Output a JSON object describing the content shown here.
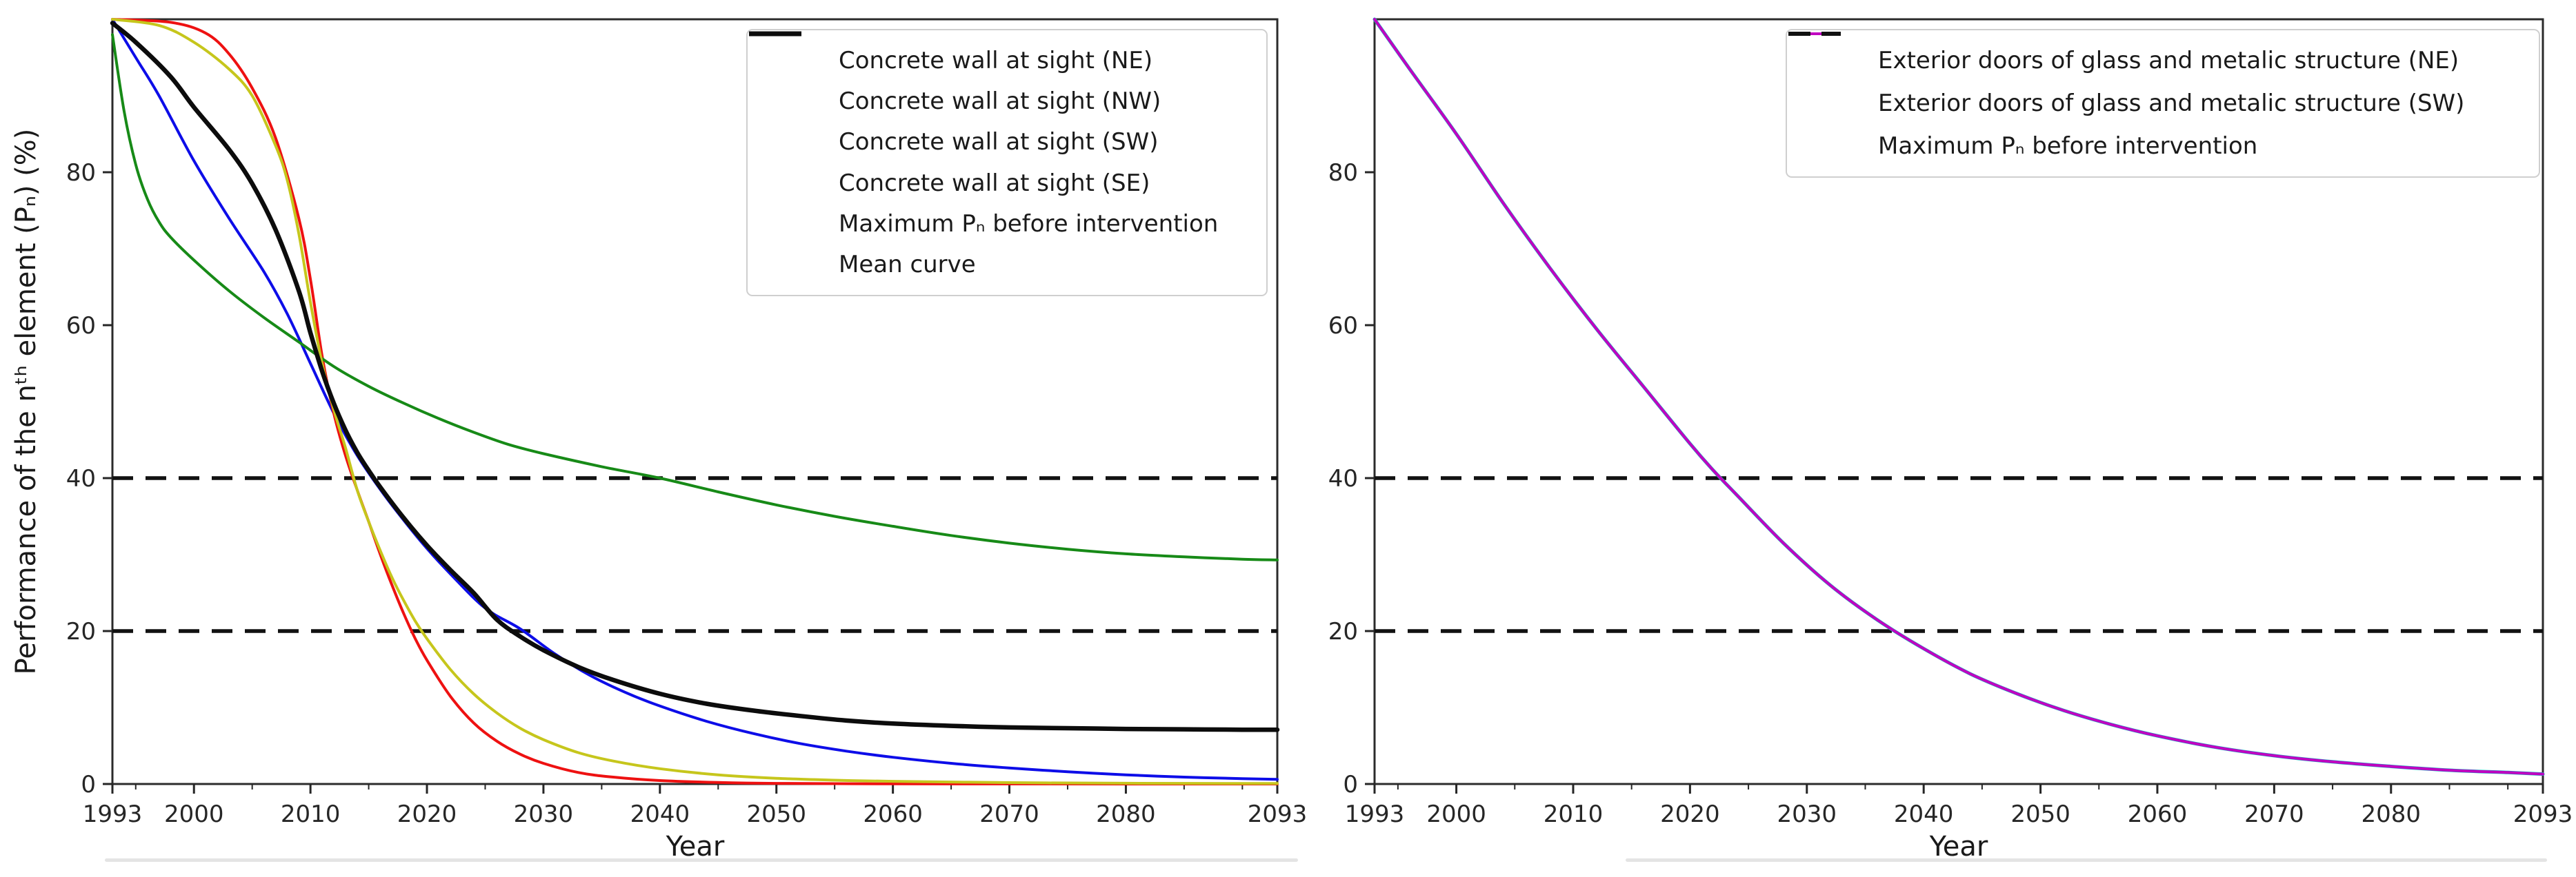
{
  "figure": {
    "background": "#ffffff",
    "spine_color": "#2b2b2b",
    "tick_color": "#262626",
    "text_color": "#1a1a1a"
  },
  "chart_data": [
    {
      "type": "line",
      "title": "",
      "xlabel": "Year",
      "ylabel": "Performance of the nᵗʰ element (Pₙ) (%)",
      "xlim": [
        1993,
        2093
      ],
      "ylim": [
        0,
        100
      ],
      "xticks_major": [
        1993,
        2000,
        2010,
        2020,
        2030,
        2040,
        2050,
        2060,
        2070,
        2080,
        2093
      ],
      "xticks_minor": [
        1995,
        2005,
        2015,
        2025,
        2035,
        2045,
        2055,
        2065,
        2075,
        2085,
        2090
      ],
      "yticks": [
        0,
        20,
        40,
        60,
        80
      ],
      "grid": false,
      "legend_position": "upper right",
      "hlines": [
        {
          "y": 40,
          "color": "#111111",
          "style": "dashed",
          "width": 5.5
        },
        {
          "y": 20,
          "color": "#111111",
          "style": "dashed",
          "width": 5.5
        }
      ],
      "series": [
        {
          "name": "Concrete wall at sight (NE)",
          "color": "#0d0de8",
          "width": 4,
          "points": [
            [
              1993,
              100
            ],
            [
              1995,
              95
            ],
            [
              1997,
              90
            ],
            [
              2000,
              81.5
            ],
            [
              2003,
              74
            ],
            [
              2006,
              67
            ],
            [
              2008,
              61.5
            ],
            [
              2010,
              55
            ],
            [
              2012,
              48.5
            ],
            [
              2014,
              43
            ],
            [
              2016,
              38.5
            ],
            [
              2018,
              34.5
            ],
            [
              2020,
              30.8
            ],
            [
              2022,
              27.5
            ],
            [
              2025,
              23
            ],
            [
              2028,
              20.3
            ],
            [
              2031,
              17
            ],
            [
              2034,
              14.2
            ],
            [
              2037,
              12
            ],
            [
              2040,
              10.2
            ],
            [
              2044,
              8.2
            ],
            [
              2048,
              6.6
            ],
            [
              2052,
              5.3
            ],
            [
              2056,
              4.3
            ],
            [
              2060,
              3.5
            ],
            [
              2065,
              2.7
            ],
            [
              2070,
              2.1
            ],
            [
              2075,
              1.6
            ],
            [
              2080,
              1.2
            ],
            [
              2085,
              0.9
            ],
            [
              2090,
              0.7
            ],
            [
              2093,
              0.6
            ]
          ]
        },
        {
          "name": "Concrete wall at sight (NW)",
          "color": "#ee1111",
          "width": 4,
          "points": [
            [
              1993,
              100
            ],
            [
              1998,
              99.6
            ],
            [
              2001,
              98.2
            ],
            [
              2003,
              95.5
            ],
            [
              2005,
              91
            ],
            [
              2007,
              84.5
            ],
            [
              2009,
              74
            ],
            [
              2010,
              66
            ],
            [
              2011,
              56
            ],
            [
              2012,
              48.5
            ],
            [
              2013,
              43
            ],
            [
              2014,
              38.5
            ],
            [
              2015,
              34.3
            ],
            [
              2016,
              30
            ],
            [
              2017,
              26
            ],
            [
              2018,
              22.3
            ],
            [
              2019,
              19
            ],
            [
              2020,
              16.2
            ],
            [
              2022,
              11.5
            ],
            [
              2024,
              8
            ],
            [
              2026,
              5.6
            ],
            [
              2028,
              3.9
            ],
            [
              2030,
              2.7
            ],
            [
              2033,
              1.5
            ],
            [
              2036,
              0.9
            ],
            [
              2040,
              0.45
            ],
            [
              2045,
              0.2
            ],
            [
              2050,
              0.08
            ],
            [
              2060,
              0.02
            ],
            [
              2070,
              0.01
            ],
            [
              2080,
              0
            ],
            [
              2093,
              0
            ]
          ]
        },
        {
          "name": "Concrete wall at sight (SW)",
          "color": "#178a17",
          "width": 4,
          "points": [
            [
              1993,
              98
            ],
            [
              1994,
              88
            ],
            [
              1995,
              81
            ],
            [
              1996,
              76.5
            ],
            [
              1997,
              73.5
            ],
            [
              1998,
              71.5
            ],
            [
              2000,
              68.5
            ],
            [
              2003,
              64.5
            ],
            [
              2006,
              61
            ],
            [
              2009,
              57.8
            ],
            [
              2012,
              54.6
            ],
            [
              2015,
              52
            ],
            [
              2018,
              49.8
            ],
            [
              2021,
              47.8
            ],
            [
              2024,
              46
            ],
            [
              2027,
              44.4
            ],
            [
              2030,
              43.2
            ],
            [
              2035,
              41.5
            ],
            [
              2040,
              40
            ],
            [
              2045,
              38.2
            ],
            [
              2050,
              36.5
            ],
            [
              2055,
              35
            ],
            [
              2060,
              33.7
            ],
            [
              2065,
              32.5
            ],
            [
              2070,
              31.5
            ],
            [
              2075,
              30.7
            ],
            [
              2080,
              30.1
            ],
            [
              2085,
              29.7
            ],
            [
              2090,
              29.4
            ],
            [
              2093,
              29.3
            ]
          ]
        },
        {
          "name": "Concrete wall at sight (SE)",
          "color": "#c6c61c",
          "width": 4,
          "points": [
            [
              1993,
              100
            ],
            [
              1997,
              99.2
            ],
            [
              2000,
              97
            ],
            [
              2003,
              93.5
            ],
            [
              2005,
              90
            ],
            [
              2007,
              83.5
            ],
            [
              2008,
              79
            ],
            [
              2009,
              72
            ],
            [
              2010,
              63
            ],
            [
              2011,
              55
            ],
            [
              2012,
              49
            ],
            [
              2013,
              44
            ],
            [
              2014,
              38.5
            ],
            [
              2015,
              34.3
            ],
            [
              2016,
              30.5
            ],
            [
              2017,
              27
            ],
            [
              2018,
              24
            ],
            [
              2019,
              21.3
            ],
            [
              2020,
              19
            ],
            [
              2022,
              15
            ],
            [
              2024,
              11.8
            ],
            [
              2026,
              9.3
            ],
            [
              2028,
              7.3
            ],
            [
              2030,
              5.8
            ],
            [
              2033,
              4.1
            ],
            [
              2036,
              3
            ],
            [
              2040,
              2
            ],
            [
              2045,
              1.2
            ],
            [
              2050,
              0.75
            ],
            [
              2055,
              0.5
            ],
            [
              2060,
              0.35
            ],
            [
              2070,
              0.18
            ],
            [
              2080,
              0.1
            ],
            [
              2093,
              0.06
            ]
          ]
        },
        {
          "name": "Mean curve",
          "color": "#0c0c0c",
          "width": 6.5,
          "points": [
            [
              1993,
              99.5
            ],
            [
              1995,
              97
            ],
            [
              1998,
              92.5
            ],
            [
              2000,
              88.5
            ],
            [
              2003,
              83
            ],
            [
              2005,
              78.5
            ],
            [
              2007,
              72.5
            ],
            [
              2009,
              64.5
            ],
            [
              2010,
              59
            ],
            [
              2011,
              54
            ],
            [
              2012,
              49.8
            ],
            [
              2013,
              46.3
            ],
            [
              2014,
              43.4
            ],
            [
              2015,
              41
            ],
            [
              2016,
              38.8
            ],
            [
              2018,
              34.8
            ],
            [
              2020,
              31.2
            ],
            [
              2022,
              28
            ],
            [
              2024,
              25
            ],
            [
              2026,
              21.5
            ],
            [
              2028,
              19.3
            ],
            [
              2030,
              17.5
            ],
            [
              2033,
              15.3
            ],
            [
              2036,
              13.6
            ],
            [
              2040,
              11.8
            ],
            [
              2044,
              10.5
            ],
            [
              2048,
              9.6
            ],
            [
              2052,
              8.9
            ],
            [
              2056,
              8.3
            ],
            [
              2060,
              7.9
            ],
            [
              2065,
              7.6
            ],
            [
              2070,
              7.4
            ],
            [
              2075,
              7.3
            ],
            [
              2080,
              7.2
            ],
            [
              2085,
              7.15
            ],
            [
              2090,
              7.1
            ],
            [
              2093,
              7.1
            ]
          ]
        }
      ],
      "legend": [
        {
          "label": "Concrete wall at sight (NE)",
          "color": "#0d0de8",
          "dash": false,
          "width": 4
        },
        {
          "label": "Concrete wall at sight (NW)",
          "color": "#ee1111",
          "dash": false,
          "width": 4
        },
        {
          "label": "Concrete wall at sight (SW)",
          "color": "#178a17",
          "dash": false,
          "width": 4
        },
        {
          "label": "Concrete wall at sight (SE)",
          "color": "#c6c61c",
          "dash": false,
          "width": 4
        },
        {
          "label": "Maximum Pₙ before intervention",
          "color": "#111111",
          "dash": true,
          "width": 6
        },
        {
          "label": "Mean curve",
          "color": "#0c0c0c",
          "dash": false,
          "width": 7
        }
      ]
    },
    {
      "type": "line",
      "title": "",
      "xlabel": "Year",
      "ylabel": "",
      "xlim": [
        1993,
        2093
      ],
      "ylim": [
        0,
        100
      ],
      "xticks_major": [
        1993,
        2000,
        2010,
        2020,
        2030,
        2040,
        2050,
        2060,
        2070,
        2080,
        2093
      ],
      "xticks_minor": [
        1995,
        2005,
        2015,
        2025,
        2035,
        2045,
        2055,
        2065,
        2075,
        2085,
        2090
      ],
      "yticks": [
        0,
        20,
        40,
        60,
        80
      ],
      "grid": false,
      "legend_position": "upper right",
      "hlines": [
        {
          "y": 40,
          "color": "#111111",
          "style": "dashed",
          "width": 5.5
        },
        {
          "y": 20,
          "color": "#111111",
          "style": "dashed",
          "width": 5.5
        }
      ],
      "series": [
        {
          "name": "Exterior doors of glass and metalic structure (NE)",
          "color": "#00bfbf",
          "width": 5,
          "points": [
            [
              1993,
              100
            ],
            [
              1996,
              93.5
            ],
            [
              2000,
              85
            ],
            [
              2004,
              76
            ],
            [
              2008,
              67.5
            ],
            [
              2012,
              59.5
            ],
            [
              2016,
              52
            ],
            [
              2020,
              44.5
            ],
            [
              2022,
              41
            ],
            [
              2024,
              37.8
            ],
            [
              2028,
              31.5
            ],
            [
              2032,
              26
            ],
            [
              2036,
              21.5
            ],
            [
              2040,
              17.7
            ],
            [
              2044,
              14.4
            ],
            [
              2048,
              11.8
            ],
            [
              2052,
              9.6
            ],
            [
              2056,
              7.8
            ],
            [
              2060,
              6.3
            ],
            [
              2065,
              4.8
            ],
            [
              2070,
              3.7
            ],
            [
              2075,
              2.9
            ],
            [
              2080,
              2.3
            ],
            [
              2085,
              1.8
            ],
            [
              2090,
              1.5
            ],
            [
              2093,
              1.3
            ]
          ]
        },
        {
          "name": "Exterior doors of glass and metalic structure (SW)",
          "color": "#c000c0",
          "width": 4,
          "points": [
            [
              1993,
              100
            ],
            [
              1996,
              93.5
            ],
            [
              2000,
              85
            ],
            [
              2004,
              76
            ],
            [
              2008,
              67.5
            ],
            [
              2012,
              59.5
            ],
            [
              2016,
              52
            ],
            [
              2020,
              44.5
            ],
            [
              2022,
              41
            ],
            [
              2024,
              37.8
            ],
            [
              2028,
              31.5
            ],
            [
              2032,
              26
            ],
            [
              2036,
              21.5
            ],
            [
              2040,
              17.7
            ],
            [
              2044,
              14.4
            ],
            [
              2048,
              11.8
            ],
            [
              2052,
              9.6
            ],
            [
              2056,
              7.8
            ],
            [
              2060,
              6.3
            ],
            [
              2065,
              4.8
            ],
            [
              2070,
              3.7
            ],
            [
              2075,
              2.9
            ],
            [
              2080,
              2.3
            ],
            [
              2085,
              1.8
            ],
            [
              2090,
              1.5
            ],
            [
              2093,
              1.3
            ]
          ]
        }
      ],
      "legend": [
        {
          "label": "Exterior doors of glass and metalic structure (NE)",
          "color": "#00bfbf",
          "dash": false,
          "width": 4
        },
        {
          "label": "Exterior doors of glass and metalic structure (SW)",
          "color": "#c000c0",
          "dash": false,
          "width": 4
        },
        {
          "label": "Maximum Pₙ before intervention",
          "color": "#111111",
          "dash": true,
          "width": 6
        }
      ]
    }
  ]
}
